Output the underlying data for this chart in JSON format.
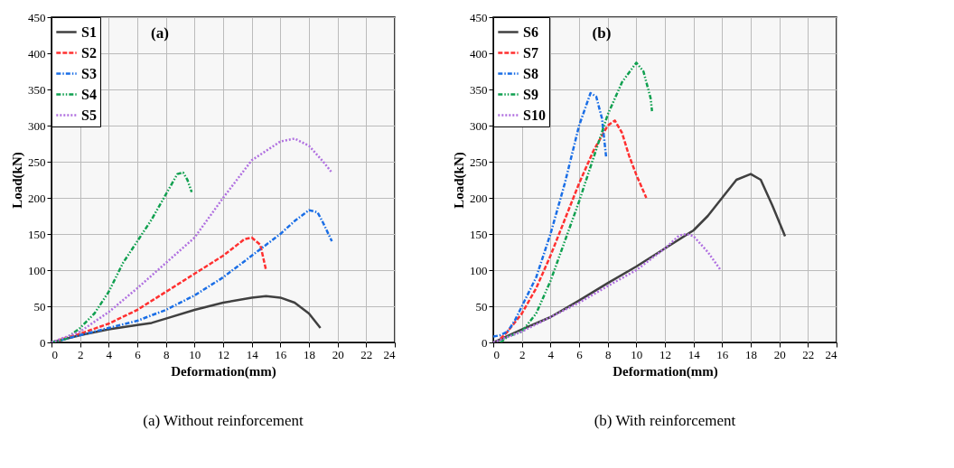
{
  "chart_data": [
    {
      "type": "line",
      "title": "(a) Without reinforcement",
      "xlabel": "Deformation(mm)",
      "ylabel": "Load(kN)",
      "annotations": [
        "(a)"
      ],
      "xlim": [
        0,
        24
      ],
      "ylim": [
        0,
        450
      ],
      "xticks": [
        0,
        2,
        4,
        6,
        8,
        10,
        12,
        14,
        16,
        18,
        20,
        22,
        24
      ],
      "yticks": [
        0,
        50,
        100,
        150,
        200,
        250,
        300,
        350,
        400,
        450
      ],
      "grid": true,
      "legend": "top left",
      "series": [
        {
          "name": "S1",
          "color": "#404040",
          "line_style": "solid",
          "x": [
            0,
            2,
            4,
            6,
            7,
            8,
            10,
            12,
            14,
            15,
            16,
            17,
            18,
            18.8
          ],
          "values": [
            0,
            10,
            18,
            24,
            27,
            33,
            45,
            55,
            62,
            64,
            62,
            55,
            40,
            20
          ]
        },
        {
          "name": "S2",
          "color": "#ff3030",
          "line_style": "dashed",
          "x": [
            0,
            2,
            4,
            6,
            8,
            10,
            12,
            13.5,
            14,
            14.6,
            15
          ],
          "values": [
            0,
            12,
            26,
            45,
            70,
            95,
            120,
            143,
            145,
            135,
            100
          ]
        },
        {
          "name": "S3",
          "color": "#1a6ee6",
          "line_style": "dashed",
          "x": [
            0,
            2,
            4,
            6,
            8,
            10,
            12,
            14,
            16,
            17,
            18,
            18.6,
            19,
            19.6
          ],
          "values": [
            0,
            10,
            20,
            30,
            45,
            65,
            90,
            120,
            150,
            168,
            183,
            180,
            165,
            140
          ]
        },
        {
          "name": "S4",
          "color": "#10a050",
          "line_style": "dashed",
          "x": [
            0,
            1,
            2,
            3,
            4,
            5,
            6,
            7,
            8,
            8.8,
            9.2,
            9.5,
            9.8
          ],
          "values": [
            0,
            5,
            20,
            40,
            70,
            110,
            140,
            170,
            205,
            233,
            235,
            225,
            208
          ]
        },
        {
          "name": "S5",
          "color": "#b070e0",
          "line_style": "dashed",
          "x": [
            0,
            2,
            4,
            6,
            8,
            10,
            12,
            14,
            16,
            17,
            18,
            19,
            19.6
          ],
          "values": [
            0,
            15,
            42,
            75,
            110,
            145,
            200,
            252,
            278,
            282,
            272,
            250,
            235
          ]
        }
      ]
    },
    {
      "type": "line",
      "title": "(b) With reinforcement",
      "xlabel": "Deformation(mm)",
      "ylabel": "Load(kN)",
      "annotations": [
        "(b)"
      ],
      "xlim": [
        0,
        24
      ],
      "ylim": [
        0,
        450
      ],
      "xticks": [
        0,
        2,
        4,
        6,
        8,
        10,
        12,
        14,
        16,
        18,
        20,
        22,
        24
      ],
      "yticks": [
        0,
        50,
        100,
        150,
        200,
        250,
        300,
        350,
        400,
        450
      ],
      "grid": true,
      "legend": "top left",
      "series": [
        {
          "name": "S6",
          "color": "#404040",
          "line_style": "solid",
          "x": [
            0,
            2,
            4,
            6,
            8,
            10,
            12,
            14,
            15,
            16,
            17,
            18,
            18.7,
            19.5,
            20.4
          ],
          "values": [
            0,
            18,
            35,
            58,
            82,
            105,
            130,
            155,
            175,
            200,
            225,
            233,
            225,
            190,
            147
          ]
        },
        {
          "name": "S7",
          "color": "#ff3030",
          "line_style": "dashed",
          "x": [
            0.5,
            1,
            2,
            3,
            4,
            5,
            6,
            7,
            8,
            8.5,
            9,
            9.5,
            10,
            10.7
          ],
          "values": [
            5,
            15,
            40,
            75,
            120,
            170,
            220,
            265,
            300,
            307,
            290,
            258,
            232,
            200
          ]
        },
        {
          "name": "S8",
          "color": "#1a6ee6",
          "line_style": "dashed",
          "x": [
            0,
            0.5,
            1,
            1.5,
            2,
            3,
            4,
            5,
            6,
            6.8,
            7.2,
            7.6,
            7.9
          ],
          "values": [
            8,
            10,
            15,
            30,
            50,
            90,
            150,
            220,
            300,
            345,
            340,
            310,
            255
          ]
        },
        {
          "name": "S9",
          "color": "#10a050",
          "line_style": "dashed",
          "x": [
            0.5,
            1,
            2,
            3,
            4,
            5,
            6,
            7,
            8,
            9,
            10,
            10.5,
            11,
            11.1
          ],
          "values": [
            0,
            8,
            15,
            40,
            85,
            140,
            195,
            255,
            315,
            360,
            387,
            375,
            338,
            320
          ]
        },
        {
          "name": "S10",
          "color": "#b070e0",
          "line_style": "dashed",
          "x": [
            0,
            2,
            4,
            6,
            8,
            10,
            11,
            12,
            13,
            13.5,
            14,
            15,
            15.9
          ],
          "values": [
            0,
            15,
            35,
            55,
            78,
            100,
            115,
            130,
            148,
            150,
            147,
            125,
            100
          ]
        }
      ]
    }
  ]
}
